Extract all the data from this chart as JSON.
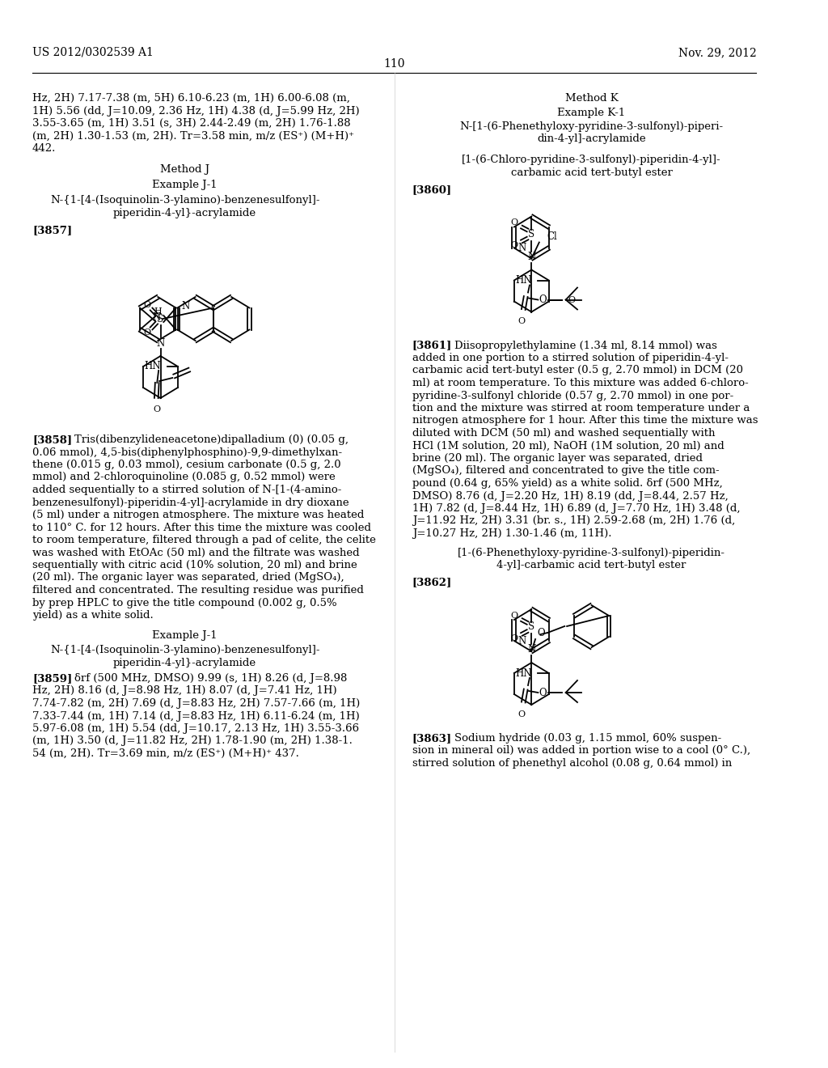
{
  "header_left": "US 2012/0302539 A1",
  "header_right": "Nov. 29, 2012",
  "page_number": "110",
  "bg": "#ffffff",
  "fg": "#000000",
  "fs": 9.5,
  "lh": 15.5,
  "cont_lines": [
    "Hz, 2H) 7.17-7.38 (m, 5H) 6.10-6.23 (m, 1H) 6.00-6.08 (m,",
    "1H) 5.56 (dd, J=10.09, 2.36 Hz, 1H) 4.38 (d, J=5.99 Hz, 2H)",
    "3.55-3.65 (m, 1H) 3.51 (s, 3H) 2.44-2.49 (m, 2H) 1.76-1.88",
    "(m, 2H) 1.30-1.53 (m, 2H). Tr=3.58 min, m/z (ES⁺) (M+H)⁺",
    "442."
  ],
  "p3858_lines": [
    "Tris(dibenzylideneacetone)dipalladium (0) (0.05 g,",
    "0.06 mmol), 4,5-bis(diphenylphosphino)-9,9-dimethylxan-",
    "thene (0.015 g, 0.03 mmol), cesium carbonate (0.5 g, 2.0",
    "mmol) and 2-chloroquinoline (0.085 g, 0.52 mmol) were",
    "added sequentially to a stirred solution of N-[1-(4-amino-",
    "benzenesulfonyl)-piperidin-4-yl]-acrylamide in dry dioxane",
    "(5 ml) under a nitrogen atmosphere. The mixture was heated",
    "to 110° C. for 12 hours. After this time the mixture was cooled",
    "to room temperature, filtered through a pad of celite, the celite",
    "was washed with EtOAc (50 ml) and the filtrate was washed",
    "sequentially with citric acid (10% solution, 20 ml) and brine",
    "(20 ml). The organic layer was separated, dried (MgSO₄),",
    "filtered and concentrated. The resulting residue was purified",
    "by prep HPLC to give the title compound (0.002 g, 0.5%",
    "yield) as a white solid."
  ],
  "p3859_lines": [
    "δrf (500 MHz, DMSO) 9.99 (s, 1H) 8.26 (d, J=8.98",
    "Hz, 2H) 8.16 (d, J=8.98 Hz, 1H) 8.07 (d, J=7.41 Hz, 1H)",
    "7.74-7.82 (m, 2H) 7.69 (d, J=8.83 Hz, 2H) 7.57-7.66 (m, 1H)",
    "7.33-7.44 (m, 1H) 7.14 (d, J=8.83 Hz, 1H) 6.11-6.24 (m, 1H)",
    "5.97-6.08 (m, 1H) 5.54 (dd, J=10.17, 2.13 Hz, 1H) 3.55-3.66",
    "(m, 1H) 3.50 (d, J=11.82 Hz, 2H) 1.78-1.90 (m, 2H) 1.38-1.",
    "54 (m, 2H). Tr=3.69 min, m/z (ES⁺) (M+H)⁺ 437."
  ],
  "p3861_lines": [
    "Diisopropylethylamine (1.34 ml, 8.14 mmol) was",
    "added in one portion to a stirred solution of piperidin-4-yl-",
    "carbamic acid tert-butyl ester (0.5 g, 2.70 mmol) in DCM (20",
    "ml) at room temperature. To this mixture was added 6-chloro-",
    "pyridine-3-sulfonyl chloride (0.57 g, 2.70 mmol) in one por-",
    "tion and the mixture was stirred at room temperature under a",
    "nitrogen atmosphere for 1 hour. After this time the mixture was",
    "diluted with DCM (50 ml) and washed sequentially with",
    "HCl (1M solution, 20 ml), NaOH (1M solution, 20 ml) and",
    "brine (20 ml). The organic layer was separated, dried",
    "(MgSO₄), filtered and concentrated to give the title com-",
    "pound (0.64 g, 65% yield) as a white solid. δrf (500 MHz,",
    "DMSO) 8.76 (d, J=2.20 Hz, 1H) 8.19 (dd, J=8.44, 2.57 Hz,",
    "1H) 7.82 (d, J=8.44 Hz, 1H) 6.89 (d, J=7.70 Hz, 1H) 3.48 (d,",
    "J=11.92 Hz, 2H) 3.31 (br. s., 1H) 2.59-2.68 (m, 2H) 1.76 (d,",
    "J=10.27 Hz, 2H) 1.30-1.46 (m, 11H)."
  ],
  "p3863_lines": [
    "Sodium hydride (0.03 g, 1.15 mmol, 60% suspen-",
    "sion in mineral oil) was added in portion wise to a cool (0° C.),",
    "stirred solution of phenethyl alcohol (0.08 g, 0.64 mmol) in"
  ]
}
